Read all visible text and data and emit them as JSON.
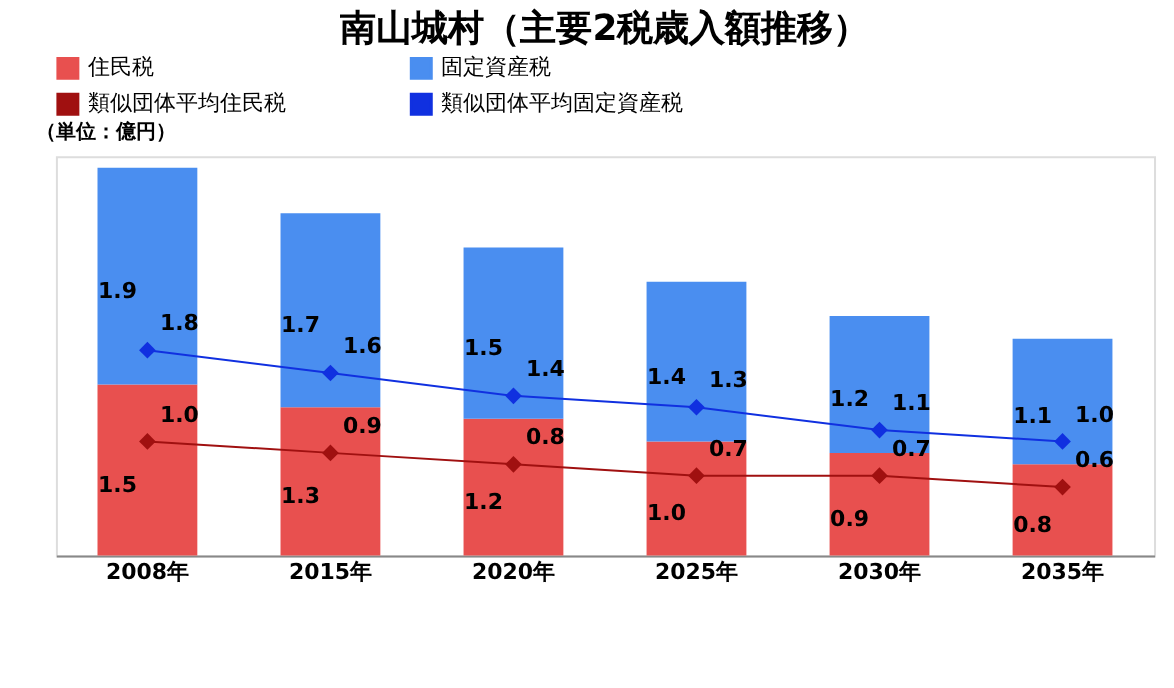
{
  "chart_data": {
    "type": "bar",
    "title": "南山城村（主要2税歳入額推移）",
    "categories": [
      "2008年",
      "2015年",
      "2020年",
      "2025年",
      "2030年",
      "2035年"
    ],
    "stacked": true,
    "legend": "top",
    "tick_labels": "x",
    "annotations": [
      "（単位：億円）"
    ],
    "series": [
      {
        "name": "住民税",
        "color": "#e8504f",
        "values": [
          1.5,
          1.3,
          1.2,
          1.0,
          0.9,
          0.8
        ],
        "value_labels": [
          "1.5",
          "1.3",
          "1.2",
          "1.0",
          "0.9",
          "0.8"
        ]
      },
      {
        "name": "固定資産税",
        "color": "#4a8ef0",
        "values": [
          1.9,
          1.7,
          1.5,
          1.4,
          1.2,
          1.1
        ],
        "value_labels": [
          "1.9",
          "1.7",
          "1.5",
          "1.4",
          "1.2",
          "1.1"
        ]
      },
      {
        "name": "類似団体平均住民税",
        "type": "line",
        "color": "#a01010",
        "marker": "diamond",
        "values": [
          1.0,
          0.9,
          0.8,
          0.7,
          0.7,
          0.6
        ],
        "value_labels": [
          "1.0",
          "0.9",
          "0.8",
          "0.7",
          "0.7",
          "0.6"
        ]
      },
      {
        "name": "類似団体平均固定資産税",
        "type": "line",
        "color": "#1030e0",
        "marker": "diamond",
        "values": [
          1.8,
          1.6,
          1.4,
          1.3,
          1.1,
          1.0
        ],
        "value_labels": [
          "1.8",
          "1.6",
          "1.4",
          "1.3",
          "1.1",
          "1.0"
        ]
      }
    ]
  }
}
